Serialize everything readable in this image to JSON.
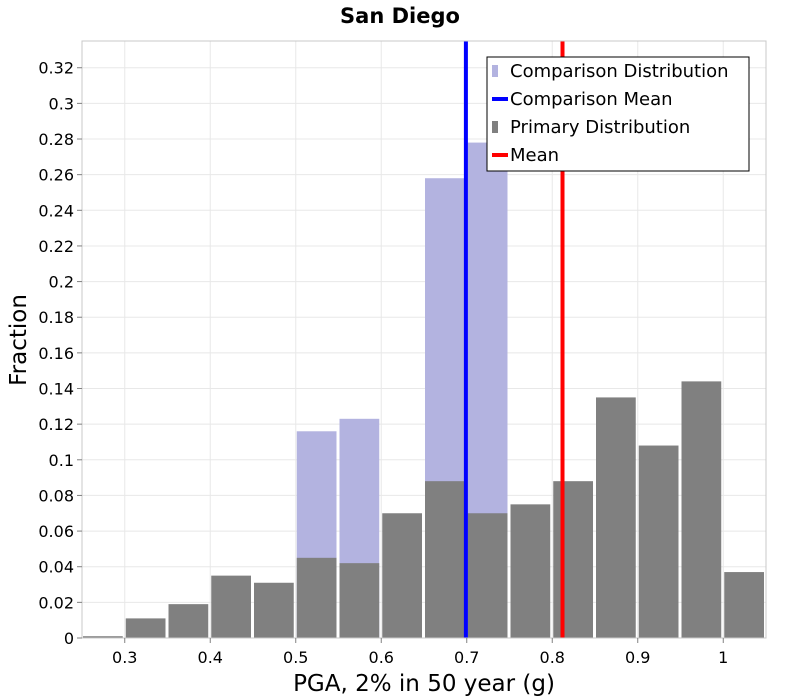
{
  "chart_data": {
    "type": "bar",
    "title": "San Diego",
    "xlabel": "PGA, 2% in 50 year (g)",
    "ylabel": "Fraction",
    "xlim": [
      0.25,
      1.05
    ],
    "ylim": [
      0,
      0.335
    ],
    "bin_width": 0.05,
    "x_ticks": [
      0.3,
      0.4,
      0.5,
      0.6,
      0.7,
      0.8,
      0.9,
      1.0
    ],
    "x_tick_labels": [
      "0.3",
      "0.4",
      "0.5",
      "0.6",
      "0.7",
      "0.8",
      "0.9",
      "1"
    ],
    "y_ticks": [
      0,
      0.02,
      0.04,
      0.06,
      0.08,
      0.1,
      0.12,
      0.14,
      0.16,
      0.18,
      0.2,
      0.22,
      0.24,
      0.26,
      0.28,
      0.3,
      0.32
    ],
    "y_tick_labels": [
      "0",
      "0.02",
      "0.04",
      "0.06",
      "0.08",
      "0.1",
      "0.12",
      "0.14",
      "0.16",
      "0.18",
      "0.2",
      "0.22",
      "0.24",
      "0.26",
      "0.28",
      "0.3",
      "0.32"
    ],
    "grid": true,
    "legend_position": "top-right",
    "series": [
      {
        "name": "Comparison Distribution",
        "kind": "histogram",
        "color": "#b3b3e0",
        "bins": [
          0.525,
          0.575,
          0.675,
          0.725
        ],
        "values": [
          0.116,
          0.123,
          0.258,
          0.278
        ]
      },
      {
        "name": "Primary Distribution",
        "kind": "histogram",
        "color": "#808080",
        "bins": [
          0.275,
          0.325,
          0.375,
          0.425,
          0.475,
          0.525,
          0.575,
          0.625,
          0.675,
          0.725,
          0.775,
          0.825,
          0.875,
          0.925,
          0.975,
          1.025
        ],
        "values": [
          0.001,
          0.011,
          0.019,
          0.035,
          0.031,
          0.045,
          0.042,
          0.07,
          0.088,
          0.07,
          0.075,
          0.088,
          0.135,
          0.108,
          0.144,
          0.037
        ]
      },
      {
        "name": "Comparison Mean",
        "kind": "vline",
        "color": "#0000ff",
        "x": 0.699
      },
      {
        "name": "Mean",
        "kind": "vline",
        "color": "#ff0000",
        "x": 0.812
      }
    ],
    "legend_order": [
      "Comparison Distribution",
      "Comparison Mean",
      "Primary Distribution",
      "Mean"
    ]
  }
}
